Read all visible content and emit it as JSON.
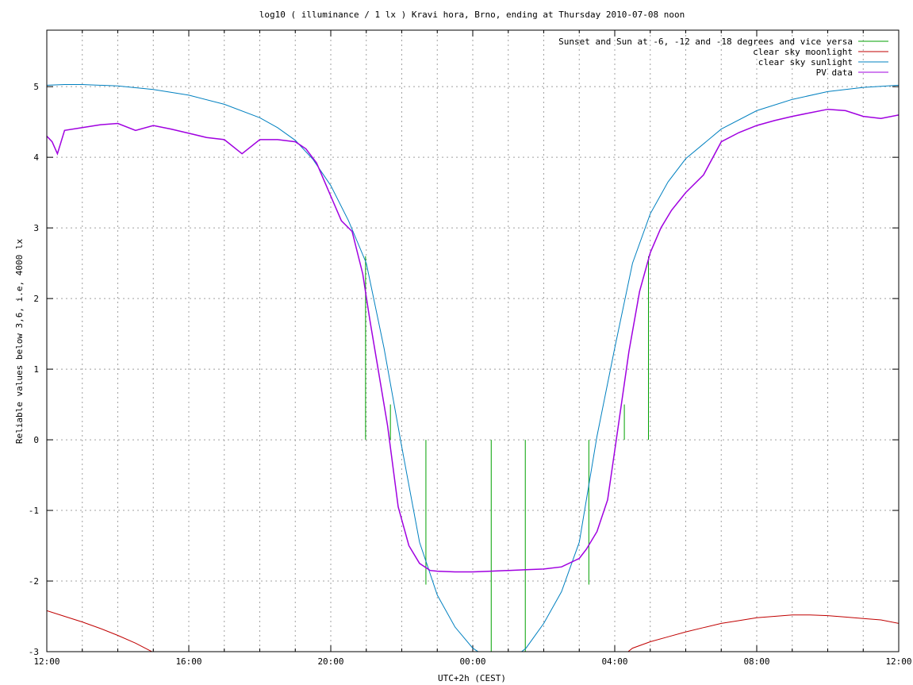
{
  "chart_data": {
    "type": "line",
    "title": "log10 ( illuminance / 1 lx ) Kravi hora, Brno, ending at Thursday 2010-07-08 noon",
    "xlabel": "UTC+2h (CEST)",
    "ylabel": "Reliable values below 3,6, i.e, 4000 lx",
    "xlim": [
      12,
      36
    ],
    "ylim": [
      -3,
      5.8
    ],
    "x_ticks": [
      {
        "value": 12,
        "label": "12:00"
      },
      {
        "value": 16,
        "label": "16:00"
      },
      {
        "value": 20,
        "label": "20:00"
      },
      {
        "value": 24,
        "label": "00:00"
      },
      {
        "value": 28,
        "label": "04:00"
      },
      {
        "value": 32,
        "label": "08:00"
      },
      {
        "value": 36,
        "label": "12:00"
      }
    ],
    "y_ticks": [
      {
        "value": -3,
        "label": "-3"
      },
      {
        "value": -2,
        "label": "-2"
      },
      {
        "value": -1,
        "label": "-1"
      },
      {
        "value": 0,
        "label": "0"
      },
      {
        "value": 1,
        "label": "1"
      },
      {
        "value": 2,
        "label": "2"
      },
      {
        "value": 3,
        "label": "3"
      },
      {
        "value": 4,
        "label": "4"
      },
      {
        "value": 5,
        "label": "5"
      }
    ],
    "grid": true,
    "legend_position": "top-right",
    "series": [
      {
        "name": "Sunset and Sun at -6, -12 and -18 degrees and vice versa",
        "color": "#00a000",
        "style": "impulses",
        "x": [
          20.98,
          21.68,
          22.68,
          24.52,
          25.48,
          27.27,
          28.27,
          28.95
        ],
        "y": [
          2.6,
          0.5,
          -2.05,
          -3.0,
          -3.0,
          -2.05,
          0.5,
          2.6
        ]
      },
      {
        "name": "clear sky moonlight",
        "color": "#c00000",
        "x": [
          12.0,
          12.5,
          13.0,
          13.5,
          14.0,
          14.5,
          15.0,
          15.5,
          16.0,
          28.0,
          28.5,
          29.0,
          29.5,
          30.0,
          30.5,
          31.0,
          31.5,
          32.0,
          32.5,
          33.0,
          33.5,
          34.0,
          34.5,
          35.0,
          35.5,
          36.0
        ],
        "y": [
          -2.42,
          -2.5,
          -2.58,
          -2.67,
          -2.77,
          -2.88,
          -3.01,
          -3.15,
          -3.3,
          -3.15,
          -2.95,
          -2.86,
          -2.79,
          -2.72,
          -2.66,
          -2.6,
          -2.56,
          -2.52,
          -2.5,
          -2.48,
          -2.48,
          -2.49,
          -2.51,
          -2.53,
          -2.55,
          -2.6
        ]
      },
      {
        "name": "clear sky sunlight",
        "color": "#0080c0",
        "x": [
          12.0,
          12.5,
          13.0,
          14.0,
          15.0,
          16.0,
          17.0,
          18.0,
          18.5,
          19.0,
          19.5,
          20.0,
          20.5,
          21.0,
          21.5,
          22.0,
          22.5,
          23.0,
          23.5,
          24.0,
          24.6,
          25.0,
          25.5,
          26.0,
          26.5,
          27.0,
          27.5,
          28.0,
          28.5,
          29.0,
          29.5,
          30.0,
          31.0,
          32.0,
          33.0,
          34.0,
          35.0,
          36.0
        ],
        "y": [
          5.02,
          5.03,
          5.03,
          5.01,
          4.96,
          4.88,
          4.75,
          4.56,
          4.42,
          4.24,
          3.97,
          3.6,
          3.1,
          2.5,
          1.3,
          -0.1,
          -1.45,
          -2.2,
          -2.65,
          -2.95,
          -3.15,
          -3.15,
          -2.95,
          -2.6,
          -2.15,
          -1.45,
          0.05,
          1.3,
          2.5,
          3.2,
          3.65,
          3.98,
          4.4,
          4.66,
          4.82,
          4.93,
          4.99,
          5.02
        ]
      },
      {
        "name": "PV data",
        "color": "#a000e0",
        "x": [
          12.0,
          12.15,
          12.3,
          12.5,
          13.0,
          13.5,
          14.0,
          14.5,
          15.0,
          15.5,
          16.0,
          16.5,
          17.0,
          17.5,
          18.0,
          18.5,
          19.0,
          19.3,
          19.6,
          20.0,
          20.3,
          20.6,
          20.9,
          21.1,
          21.3,
          21.6,
          21.9,
          22.2,
          22.5,
          22.8,
          23.0,
          23.5,
          24.0,
          24.5,
          25.0,
          25.5,
          26.0,
          26.5,
          27.0,
          27.2,
          27.5,
          27.8,
          28.1,
          28.4,
          28.7,
          29.0,
          29.3,
          29.6,
          30.0,
          30.5,
          31.0,
          31.5,
          32.0,
          32.5,
          33.0,
          33.5,
          34.0,
          34.5,
          35.0,
          35.5,
          36.0
        ],
        "y": [
          4.3,
          4.22,
          4.05,
          4.38,
          4.42,
          4.46,
          4.48,
          4.38,
          4.45,
          4.4,
          4.34,
          4.28,
          4.25,
          4.05,
          4.25,
          4.25,
          4.22,
          4.12,
          3.92,
          3.45,
          3.1,
          2.95,
          2.35,
          1.7,
          1.1,
          0.2,
          -0.95,
          -1.5,
          -1.75,
          -1.85,
          -1.86,
          -1.87,
          -1.87,
          -1.86,
          -1.85,
          -1.84,
          -1.83,
          -1.8,
          -1.68,
          -1.55,
          -1.3,
          -0.85,
          0.2,
          1.25,
          2.1,
          2.65,
          3.0,
          3.25,
          3.5,
          3.75,
          4.22,
          4.35,
          4.45,
          4.52,
          4.58,
          4.63,
          4.68,
          4.66,
          4.58,
          4.55,
          4.6
        ]
      }
    ]
  }
}
